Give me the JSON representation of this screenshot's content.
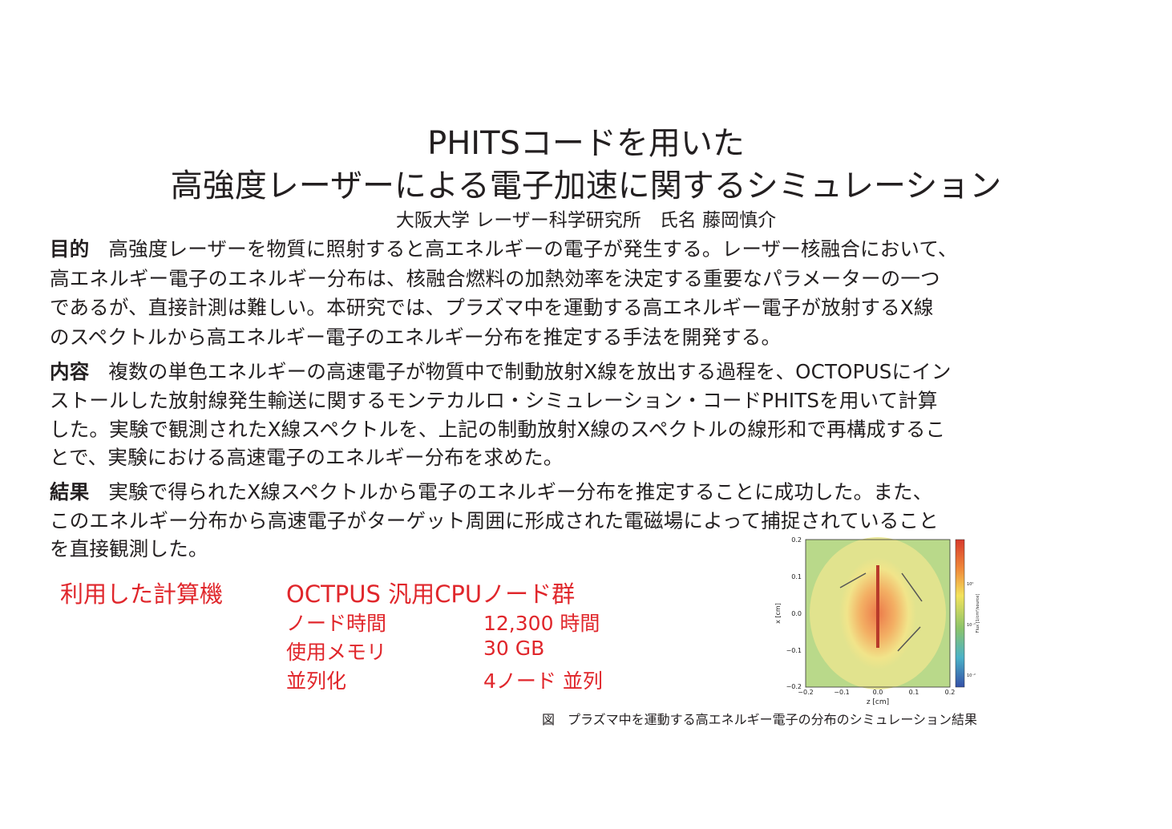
{
  "title": {
    "line1": "PHITSコードを用いた",
    "line2": "高強度レーザーによる電子加速に関するシミュレーション"
  },
  "author": "大阪大学 レーザー科学研究所　氏名 藤岡慎介",
  "sections": [
    {
      "heading": "目的",
      "lines": [
        "高強度レーザーを物質に照射すると高エネルギーの電子が発生する。レーザー核融合において、",
        "高エネルギー電子のエネルギー分布は、核融合燃料の加熱効率を決定する重要なパラメーターの一つ",
        "であるが、直接計測は難しい。本研究では、プラズマ中を運動する高エネルギー電子が放射するX線",
        "のスペクトルから高エネルギー電子のエネルギー分布を推定する手法を開発する。"
      ]
    },
    {
      "heading": "内容",
      "lines": [
        "複数の単色エネルギーの高速電子が物質中で制動放射X線を放出する過程を、OCTOPUSにイン",
        "ストールした放射線発生輸送に関するモンテカルロ・シミュレーション・コードPHITSを用いて計算",
        "した。実験で観測されたX線スペクトルを、上記の制動放射X線のスペクトルの線形和で再構成するこ",
        "とで、実験における高速電子のエネルギー分布を求めた。"
      ]
    },
    {
      "heading": "結果",
      "lines": [
        "実験で得られたX線スペクトルから電子のエネルギー分布を推定することに成功した。また、",
        "このエネルギー分布から高速電子がターゲット周囲に形成された電磁場によって捕捉されていること",
        "を直接観測した。"
      ]
    }
  ],
  "computer": {
    "label": "利用した計算機",
    "name": "OCTPUS 汎用CPUノード群",
    "rows": [
      {
        "key": "ノード時間",
        "value": "12,300 時間"
      },
      {
        "key": "使用メモリ",
        "value": "30 GB"
      },
      {
        "key": "並列化",
        "value": "4ノード 並列"
      }
    ],
    "color": "#e0262b"
  },
  "figure": {
    "xlabel": "z [cm]",
    "ylabel": "x [cm]",
    "xticks": [
      "−0.2",
      "−0.1",
      "0.0",
      "0.1",
      "0.2"
    ],
    "yticks": [
      "0.2",
      "0.1",
      "0.0",
      "−0.1",
      "−0.2"
    ],
    "colorbar_label": "Flux [1/cm²/source]",
    "colorbar_ticks": [
      "10⁰",
      "10⁻¹",
      "10⁻²"
    ],
    "caption": "図　プラズマ中を運動する高エネルギー電子の分布のシミュレーション結果"
  }
}
